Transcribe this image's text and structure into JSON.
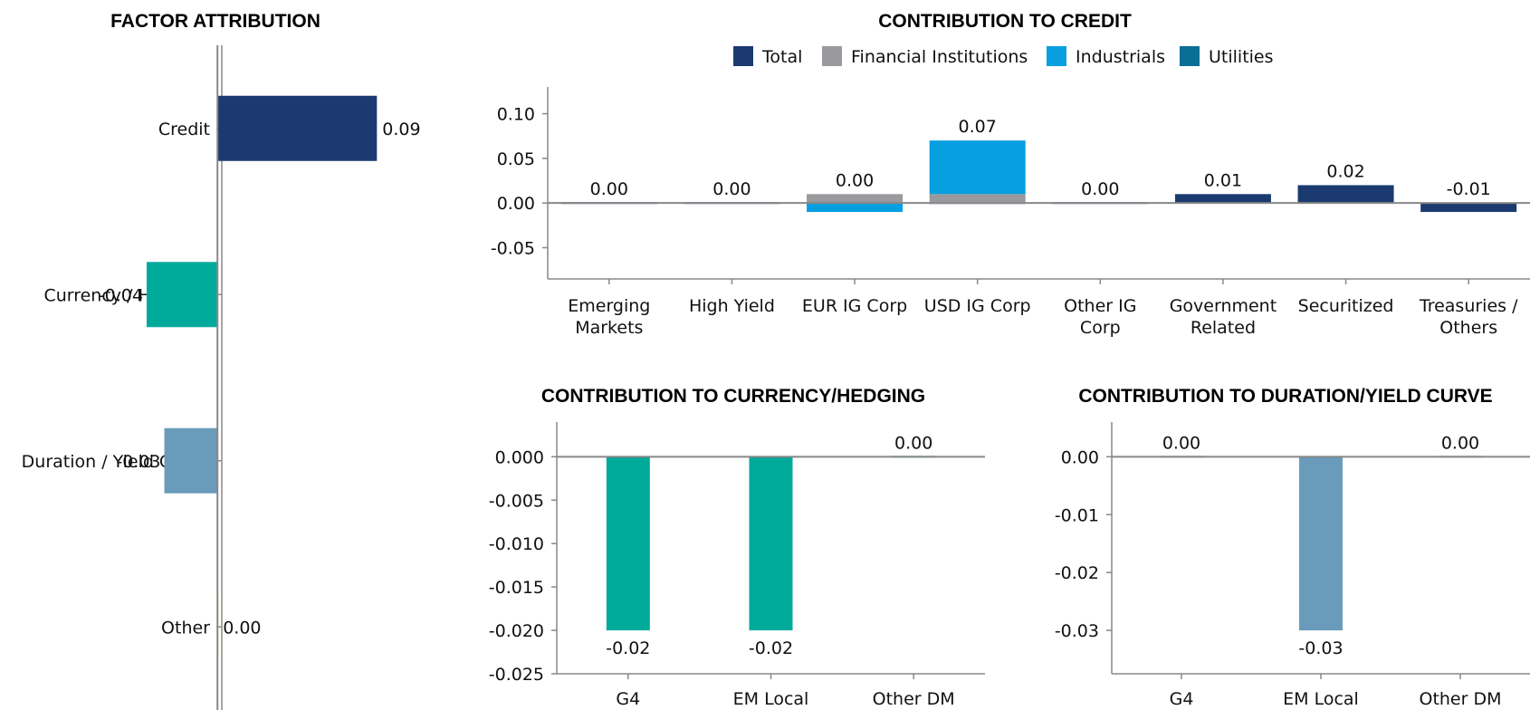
{
  "colors": {
    "total": "#1b3a70",
    "financial": "#9a9a9e",
    "industrials": "#079fdf",
    "utilities": "#0b6e93",
    "currency": "#00aa9b",
    "duration": "#6a9bba",
    "other": "#c7d300"
  },
  "chart_data": [
    {
      "type": "bar",
      "orientation": "horizontal",
      "title": "FACTOR ATTRIBUTION",
      "categories": [
        "Credit",
        "Currency / Hedging",
        "Duration / Yield Curve",
        "Other"
      ],
      "values": [
        0.09,
        -0.04,
        -0.03,
        0.0
      ],
      "data_labels": [
        "0.09",
        "-0.04",
        "-0.03",
        "0.00"
      ],
      "bar_colors": [
        "#1b3a70",
        "#00aa9b",
        "#6a9bba",
        "#c7d300"
      ],
      "xlim": [
        -0.11,
        0.12
      ]
    },
    {
      "type": "bar",
      "stacked": true,
      "title": "CONTRIBUTION TO CREDIT",
      "legend": [
        "Total",
        "Financial Institutions",
        "Industrials",
        "Utilities"
      ],
      "legend_position": "top",
      "categories": [
        [
          "Emerging",
          "Markets"
        ],
        [
          "High Yield"
        ],
        [
          "EUR IG Corp"
        ],
        [
          "USD IG Corp"
        ],
        [
          "Other IG",
          "Corp"
        ],
        [
          "Government",
          "Related"
        ],
        [
          "Securitized"
        ],
        [
          "Treasuries /",
          "Others"
        ]
      ],
      "series": [
        {
          "name": "Total",
          "values": [
            0.0,
            0.0,
            0.0,
            0.0,
            0.0,
            0.01,
            0.02,
            -0.01
          ]
        },
        {
          "name": "Financial Institutions",
          "values": [
            0.0,
            0.0,
            0.01,
            0.01,
            0.0,
            0.0,
            0.0,
            0.0
          ]
        },
        {
          "name": "Industrials",
          "values": [
            0.0,
            0.0,
            -0.01,
            0.06,
            0.0,
            0.0,
            0.0,
            0.0
          ]
        },
        {
          "name": "Utilities",
          "values": [
            0.0,
            0.0,
            0.0,
            0.0,
            0.0,
            0.0,
            0.0,
            0.0
          ]
        }
      ],
      "data_labels": [
        "0.00",
        "0.00",
        "0.00",
        "0.07",
        "0.00",
        "0.01",
        "0.02",
        "-0.01"
      ],
      "label_values": [
        0.0,
        0.0,
        0.01,
        0.07,
        0.0,
        0.01,
        0.02,
        0.0
      ],
      "ylim": [
        -0.085,
        0.13
      ],
      "yticks": [
        0.1,
        0.05,
        0.0,
        -0.05
      ],
      "ytick_labels": [
        "0.10",
        "0.05",
        "0.00",
        "-0.05"
      ]
    },
    {
      "type": "bar",
      "title": "CONTRIBUTION TO CURRENCY/HEDGING",
      "categories": [
        "G4",
        "EM Local",
        "Other DM"
      ],
      "values": [
        -0.02,
        -0.02,
        0.0
      ],
      "data_labels": [
        "-0.02",
        "-0.02",
        "0.00"
      ],
      "bar_color": "#00aa9b",
      "ylim": [
        -0.025,
        0.004
      ],
      "yticks": [
        0.0,
        -0.005,
        -0.01,
        -0.015,
        -0.02,
        -0.025
      ],
      "ytick_labels": [
        "0.000",
        "-0.005",
        "-0.010",
        "-0.015",
        "-0.020",
        "-0.025"
      ]
    },
    {
      "type": "bar",
      "title": "CONTRIBUTION TO DURATION/YIELD CURVE",
      "categories": [
        "G4",
        "EM Local",
        "Other DM"
      ],
      "values": [
        0.0,
        -0.03,
        0.0
      ],
      "data_labels": [
        "0.00",
        "-0.03",
        "0.00"
      ],
      "bar_color": "#6a9bba",
      "ylim": [
        -0.0375,
        0.006
      ],
      "yticks": [
        0.0,
        -0.01,
        -0.02,
        -0.03
      ],
      "ytick_labels": [
        "0.00",
        "-0.01",
        "-0.02",
        "-0.03"
      ]
    }
  ]
}
